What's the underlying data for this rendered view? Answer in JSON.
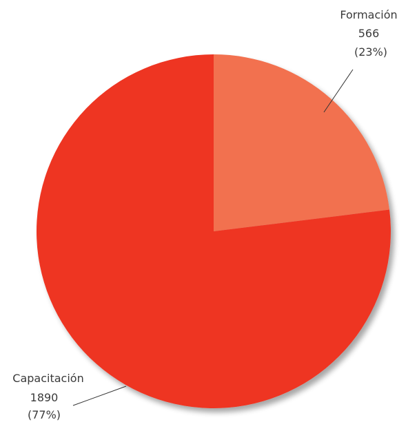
{
  "chart_data": {
    "type": "pie",
    "start_angle_deg": 0,
    "direction": "clockwise",
    "shadow": true,
    "slices": [
      {
        "label": "Formación",
        "value": 566,
        "percent_label": "(23%)",
        "color": "#f2714f"
      },
      {
        "label": "Capacitación",
        "value": 1890,
        "percent_label": "(77%)",
        "color": "#ee3524"
      }
    ]
  }
}
